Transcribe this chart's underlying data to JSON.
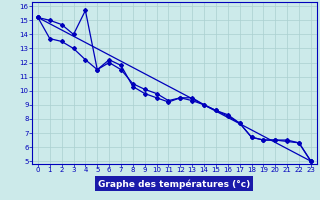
{
  "xlabel": "Graphe des températures (°c)",
  "xlim": [
    -0.5,
    23.5
  ],
  "ylim": [
    4.8,
    16.3
  ],
  "yticks": [
    5,
    6,
    7,
    8,
    9,
    10,
    11,
    12,
    13,
    14,
    15,
    16
  ],
  "xticks": [
    0,
    1,
    2,
    3,
    4,
    5,
    6,
    7,
    8,
    9,
    10,
    11,
    12,
    13,
    14,
    15,
    16,
    17,
    18,
    19,
    20,
    21,
    22,
    23
  ],
  "bg_color": "#cceaea",
  "grid_color": "#aad0d0",
  "line_color": "#0000bb",
  "line1_x": [
    0,
    1,
    2,
    3,
    4,
    5,
    6,
    7,
    8,
    9,
    10,
    11,
    12,
    13,
    14,
    15,
    16,
    17,
    18,
    19,
    20,
    21,
    22,
    23
  ],
  "line1_y": [
    15.2,
    15.0,
    14.7,
    14.0,
    15.7,
    11.5,
    12.2,
    11.8,
    10.3,
    9.8,
    9.5,
    9.2,
    9.5,
    9.5,
    9.0,
    8.6,
    8.2,
    7.7,
    6.7,
    6.5,
    6.5,
    6.5,
    6.3,
    5.0
  ],
  "line2_x": [
    0,
    1,
    2,
    3,
    4,
    5,
    6,
    7,
    8,
    9,
    10,
    11,
    12,
    13,
    14,
    15,
    16,
    17,
    18,
    19,
    20,
    21,
    22,
    23
  ],
  "line2_y": [
    15.2,
    13.7,
    13.5,
    13.0,
    12.2,
    11.5,
    12.0,
    11.5,
    10.5,
    10.1,
    9.8,
    9.3,
    9.5,
    9.3,
    9.0,
    8.6,
    8.3,
    7.7,
    6.7,
    6.5,
    6.5,
    6.4,
    6.3,
    5.0
  ],
  "line3_x": [
    0,
    23
  ],
  "line3_y": [
    15.2,
    5.0
  ],
  "marker": "D",
  "marker_size": 2.0,
  "linewidth": 0.9,
  "axis_label_fontsize": 6.5,
  "tick_fontsize": 5.0,
  "axis_color": "#0000bb",
  "tick_color": "#0000bb",
  "label_color": "#0000bb",
  "spine_color": "#0000bb",
  "xlabel_bg": "#1a1aaa"
}
